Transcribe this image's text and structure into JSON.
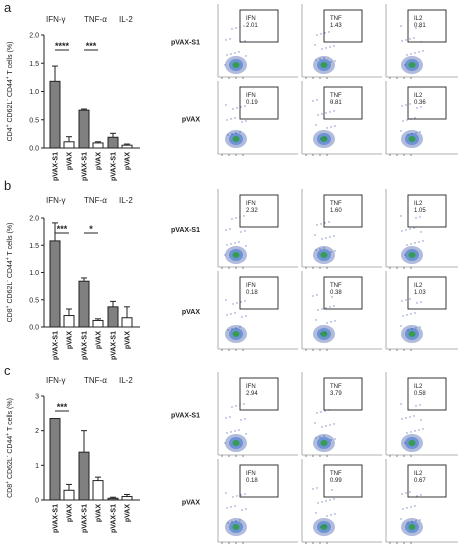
{
  "panels": [
    {
      "letter": "a",
      "ylabel": "CD4+ CD62L- CD44+ T cells (%)",
      "ylabel_parts": [
        "CD4",
        "+",
        " CD62L",
        "-",
        " CD44",
        "+",
        " T cells (%)"
      ],
      "yticks": [
        "0.0",
        "0.5",
        "1.0",
        "1.5",
        "2.0"
      ],
      "groups": [
        "IFN-γ",
        "TNF-α",
        "IL-2"
      ],
      "bar_labels": [
        "pVAX-S1",
        "pVAX",
        "pVAX-S1",
        "pVAX",
        "pVAX-S1",
        "pVAX"
      ],
      "signif": [
        "****",
        "***"
      ],
      "flow_rows": [
        "pVAX-S1",
        "pVAX"
      ],
      "gates": [
        [
          "IFN",
          "2.01"
        ],
        [
          "TNF",
          "1.43"
        ],
        [
          "IL2",
          "0.81"
        ],
        [
          "IFN",
          "0.19"
        ],
        [
          "TNF",
          "0.81"
        ],
        [
          "IL2",
          "0.36"
        ]
      ]
    },
    {
      "letter": "b",
      "ylabel": "CD8+ CD62L- CD44+ T cells (%)",
      "ylabel_parts": [
        "CD8",
        "+",
        " CD62L",
        "-",
        " CD44",
        "+",
        " T cells (%)"
      ],
      "yticks": [
        "0.0",
        "0.5",
        "1.0",
        "1.5",
        "2.0"
      ],
      "groups": [
        "IFN-γ",
        "TNF-α",
        "IL-2"
      ],
      "bar_labels": [
        "pVAX-S1",
        "pVAX",
        "pVAX-S1",
        "pVAX",
        "pVAX-S1",
        "pVAX"
      ],
      "signif": [
        "***",
        "*"
      ],
      "flow_rows": [
        "pVAX-S1",
        "pVAX"
      ],
      "gates": [
        [
          "IFN",
          "2.32"
        ],
        [
          "TNF",
          "1.60"
        ],
        [
          "IL2",
          "1.05"
        ],
        [
          "IFN",
          "0.18"
        ],
        [
          "TNF",
          "0.38"
        ],
        [
          "IL2",
          "1.03"
        ]
      ]
    },
    {
      "letter": "c",
      "ylabel": "CD8+ CD62L- CD44+ T cells (%)",
      "ylabel_parts": [
        "CD8",
        "+",
        " CD62L",
        "-",
        " CD44",
        "+",
        " T cells (%)"
      ],
      "yticks": [
        "0",
        "1",
        "2",
        "3"
      ],
      "groups": [
        "IFN-γ",
        "TNF-α",
        "IL-2"
      ],
      "bar_labels": [
        "pVAX-S1",
        "pVAX",
        "pVAX-S1",
        "pVAX",
        "pVAX-S1",
        "pVAX"
      ],
      "signif": [
        "***"
      ],
      "flow_rows": [
        "pVAX-S1",
        "pVAX"
      ],
      "gates": [
        [
          "IFN",
          "2.94"
        ],
        [
          "TNF",
          "3.79"
        ],
        [
          "IL2",
          "0.58"
        ],
        [
          "IFN",
          "0.18"
        ],
        [
          "TNF",
          "0.99"
        ],
        [
          "IL2",
          "0.67"
        ]
      ]
    }
  ],
  "colors": {
    "treated": "#808080",
    "control": "#ffffff",
    "edge": "#222222",
    "scatter_core": "#2d9d3a",
    "scatter_mid": "#3f78d2",
    "scatter_outer": "#1f3d99"
  },
  "chart_data": [
    {
      "type": "bar",
      "title": "",
      "ylabel": "CD4+ CD62L- CD44+ T cells (%)",
      "categories": [
        "IFN-γ",
        "TNF-α",
        "IL-2"
      ],
      "ylim": [
        0,
        2.0
      ],
      "series": [
        {
          "name": "pVAX-S1",
          "values": [
            1.18,
            0.67,
            0.19
          ],
          "errors": [
            0.27,
            0.02,
            0.07
          ]
        },
        {
          "name": "pVAX",
          "values": [
            0.11,
            0.09,
            0.05
          ],
          "errors": [
            0.09,
            0.02,
            0.02
          ]
        }
      ],
      "significance": [
        {
          "category": "IFN-γ",
          "label": "****"
        },
        {
          "category": "TNF-α",
          "label": "***"
        }
      ],
      "flow_gates": [
        {
          "row": "pVAX-S1",
          "gate": "IFN",
          "value": 2.01
        },
        {
          "row": "pVAX-S1",
          "gate": "TNF",
          "value": 1.43
        },
        {
          "row": "pVAX-S1",
          "gate": "IL2",
          "value": 0.81
        },
        {
          "row": "pVAX",
          "gate": "IFN",
          "value": 0.19
        },
        {
          "row": "pVAX",
          "gate": "TNF",
          "value": 0.81
        },
        {
          "row": "pVAX",
          "gate": "IL2",
          "value": 0.36
        }
      ]
    },
    {
      "type": "bar",
      "title": "",
      "ylabel": "CD8+ CD62L- CD44+ T cells (%)",
      "categories": [
        "IFN-γ",
        "TNF-α",
        "IL-2"
      ],
      "ylim": [
        0,
        2.0
      ],
      "series": [
        {
          "name": "pVAX-S1",
          "values": [
            1.58,
            0.84,
            0.37
          ],
          "errors": [
            0.33,
            0.06,
            0.1
          ]
        },
        {
          "name": "pVAX",
          "values": [
            0.21,
            0.12,
            0.17
          ],
          "errors": [
            0.12,
            0.03,
            0.2
          ]
        }
      ],
      "significance": [
        {
          "category": "IFN-γ",
          "label": "***"
        },
        {
          "category": "TNF-α",
          "label": "*"
        }
      ],
      "flow_gates": [
        {
          "row": "pVAX-S1",
          "gate": "IFN",
          "value": 2.32
        },
        {
          "row": "pVAX-S1",
          "gate": "TNF",
          "value": 1.6
        },
        {
          "row": "pVAX-S1",
          "gate": "IL2",
          "value": 1.05
        },
        {
          "row": "pVAX",
          "gate": "IFN",
          "value": 0.18
        },
        {
          "row": "pVAX",
          "gate": "TNF",
          "value": 0.38
        },
        {
          "row": "pVAX",
          "gate": "IL2",
          "value": 1.03
        }
      ]
    },
    {
      "type": "bar",
      "title": "",
      "ylabel": "CD8+ CD62L- CD44+ T cells (%)",
      "categories": [
        "IFN-γ",
        "TNF-α",
        "IL-2"
      ],
      "ylim": [
        0,
        3
      ],
      "series": [
        {
          "name": "pVAX-S1",
          "values": [
            2.35,
            1.38,
            0.05
          ],
          "errors": [
            0.0,
            0.62,
            0.03
          ]
        },
        {
          "name": "pVAX",
          "values": [
            0.28,
            0.56,
            0.1
          ],
          "errors": [
            0.17,
            0.1,
            0.06
          ]
        }
      ],
      "significance": [
        {
          "category": "IFN-γ",
          "label": "***"
        }
      ],
      "flow_gates": [
        {
          "row": "pVAX-S1",
          "gate": "IFN",
          "value": 2.94
        },
        {
          "row": "pVAX-S1",
          "gate": "TNF",
          "value": 3.79
        },
        {
          "row": "pVAX-S1",
          "gate": "IL2",
          "value": 0.58
        },
        {
          "row": "pVAX",
          "gate": "IFN",
          "value": 0.18
        },
        {
          "row": "pVAX",
          "gate": "TNF",
          "value": 0.99
        },
        {
          "row": "pVAX",
          "gate": "IL2",
          "value": 0.67
        }
      ]
    }
  ]
}
